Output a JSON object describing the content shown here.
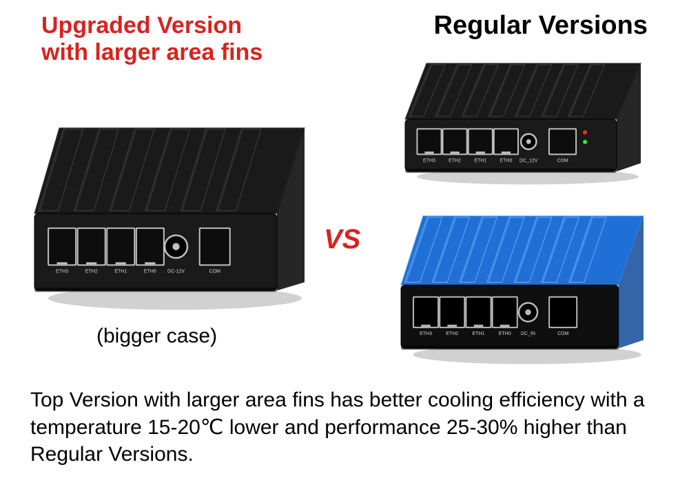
{
  "left_heading": {
    "line1": "Upgraded Version",
    "line2": "with larger area fins",
    "color": "#d9221e",
    "fontsize": 34
  },
  "right_heading": {
    "text": "Regular Versions",
    "color": "#000000",
    "fontsize": 38
  },
  "vs": {
    "text": "VS",
    "color": "#d9221e",
    "fontsize": 40
  },
  "caption_left": {
    "text": "(bigger case)",
    "color": "#000000",
    "fontsize": 30
  },
  "footer": {
    "text": "Top Version with larger area fins has better cooling efficiency with a temperature 15-20℃ lower and performance 25-30% higher than Regular Versions.",
    "color": "#000000",
    "fontsize": 30
  },
  "upgraded_device": {
    "case_color": "#1a1a1a",
    "case_highlight": "#3a3a3a",
    "port_frame": "#c0c0c0",
    "port_dark": "#0d0d0d",
    "label_color": "#d6d6d6",
    "fin_count": 6,
    "eth_labels": [
      "ETH3",
      "ETH2",
      "ETH1",
      "ETH0"
    ],
    "dc_label": "DC-12V",
    "com_label": "COM"
  },
  "regular_black_device": {
    "case_color": "#1a1a1a",
    "case_highlight": "#3a3a3a",
    "port_frame": "#c0c0c0",
    "port_dark": "#0d0d0d",
    "label_color": "#d6d6d6",
    "led_red": "#ff2a2a",
    "led_green": "#2aff2a",
    "fin_count": 7,
    "eth_labels": [
      "ETH3",
      "ETH2",
      "ETH1",
      "ETH0"
    ],
    "dc_label": "DC_12V",
    "com_label": "COM"
  },
  "regular_blue_device": {
    "case_color": "#1f6fd6",
    "case_shadow": "#0f4a99",
    "case_highlight": "#5ea0ef",
    "face_color": "#0f0f0f",
    "port_frame": "#b8b8b8",
    "port_dark": "#000000",
    "label_color": "#d6d6d6",
    "fin_count": 7,
    "eth_labels": [
      "ETH3",
      "ETH2",
      "ETH1",
      "ETH0"
    ],
    "dc_label": "DC_IN",
    "com_label": "COM"
  }
}
